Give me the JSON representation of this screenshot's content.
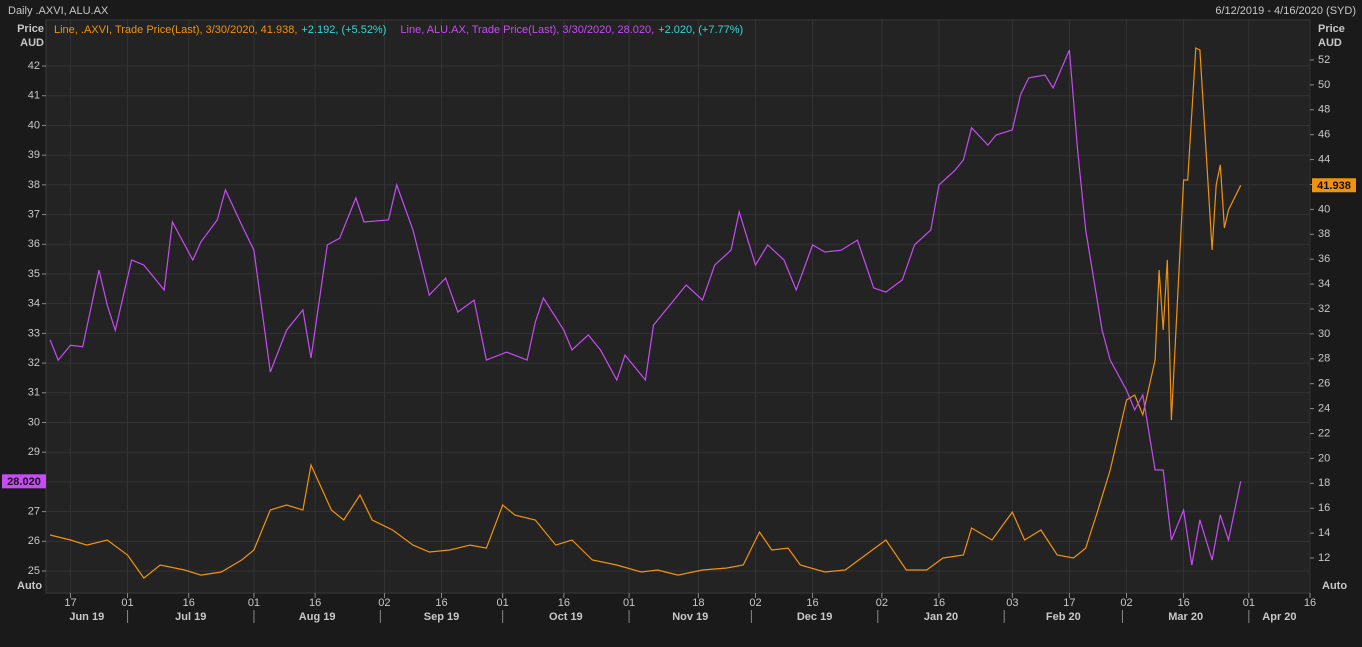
{
  "chart_data": {
    "type": "line",
    "title": "Daily .AXVI, ALU.AX",
    "subtitle": "6/12/2019 - 4/16/2020 (SYD)",
    "ylabel": [
      "Price",
      "AUD"
    ],
    "y2label": [
      "Price",
      "AUD"
    ],
    "auto_labels": [
      "Auto",
      "Auto"
    ],
    "grid": true,
    "xlim": [
      "2019-06-11",
      "2020-04-16"
    ],
    "xticks": [
      {
        "value": "2019-06-17",
        "label": "17"
      },
      {
        "value": "2019-07-01",
        "label": "01"
      },
      {
        "value": "2019-07-16",
        "label": "16"
      },
      {
        "value": "2019-08-01",
        "label": "01"
      },
      {
        "value": "2019-08-16",
        "label": "16"
      },
      {
        "value": "2019-09-02",
        "label": "02"
      },
      {
        "value": "2019-09-16",
        "label": "16"
      },
      {
        "value": "2019-10-01",
        "label": "01"
      },
      {
        "value": "2019-10-16",
        "label": "16"
      },
      {
        "value": "2019-11-01",
        "label": "01"
      },
      {
        "value": "2019-11-18",
        "label": "18"
      },
      {
        "value": "2019-12-02",
        "label": "02"
      },
      {
        "value": "2019-12-16",
        "label": "16"
      },
      {
        "value": "2020-01-02",
        "label": "02"
      },
      {
        "value": "2020-01-16",
        "label": "16"
      },
      {
        "value": "2020-02-03",
        "label": "03"
      },
      {
        "value": "2020-02-17",
        "label": "17"
      },
      {
        "value": "2020-03-02",
        "label": "02"
      },
      {
        "value": "2020-03-16",
        "label": "16"
      },
      {
        "value": "2020-04-01",
        "label": "01"
      },
      {
        "value": "2020-04-16",
        "label": "16"
      }
    ],
    "month_labels": [
      {
        "value": "2019-06",
        "label": "Jun 19"
      },
      {
        "value": "2019-07",
        "label": "Jul 19"
      },
      {
        "value": "2019-08",
        "label": "Aug 19"
      },
      {
        "value": "2019-09",
        "label": "Sep 19"
      },
      {
        "value": "2019-10",
        "label": "Oct 19"
      },
      {
        "value": "2019-11",
        "label": "Nov 19"
      },
      {
        "value": "2019-12",
        "label": "Dec 19"
      },
      {
        "value": "2020-01",
        "label": "Jan 20"
      },
      {
        "value": "2020-02",
        "label": "Feb 20"
      },
      {
        "value": "2020-03",
        "label": "Mar 20"
      },
      {
        "value": "2020-04",
        "label": "Apr 20"
      }
    ],
    "ylim": [
      24.26,
      43.55
    ],
    "yticks": [
      25,
      26,
      27,
      28,
      29,
      30,
      31,
      32,
      33,
      34,
      35,
      36,
      37,
      38,
      39,
      40,
      41,
      42
    ],
    "y2lim": [
      9.19,
      55.21
    ],
    "y2ticks": [
      12,
      14,
      16,
      18,
      20,
      22,
      24,
      26,
      28,
      30,
      32,
      34,
      36,
      38,
      40,
      42,
      44,
      46,
      48,
      50,
      52
    ],
    "series": [
      {
        "name": "Line, .AXVI, Trade Price(Last), 3/30/2020, 41.938,",
        "change": "+2.192, (+5.52%)",
        "color": "#f0920e",
        "axis": "y2",
        "last_label": "41.938",
        "x": [
          "2019-06-12",
          "2019-06-17",
          "2019-06-21",
          "2019-06-26",
          "2019-07-01",
          "2019-07-05",
          "2019-07-09",
          "2019-07-15",
          "2019-07-19",
          "2019-07-24",
          "2019-07-29",
          "2019-08-01",
          "2019-08-05",
          "2019-08-09",
          "2019-08-13",
          "2019-08-15",
          "2019-08-20",
          "2019-08-23",
          "2019-08-27",
          "2019-08-30",
          "2019-09-04",
          "2019-09-09",
          "2019-09-13",
          "2019-09-18",
          "2019-09-23",
          "2019-09-27",
          "2019-10-01",
          "2019-10-04",
          "2019-10-09",
          "2019-10-14",
          "2019-10-18",
          "2019-10-23",
          "2019-10-29",
          "2019-11-04",
          "2019-11-08",
          "2019-11-13",
          "2019-11-19",
          "2019-11-25",
          "2019-11-29",
          "2019-12-03",
          "2019-12-06",
          "2019-12-10",
          "2019-12-13",
          "2019-12-19",
          "2019-12-24",
          "2019-12-30",
          "2020-01-03",
          "2020-01-08",
          "2020-01-13",
          "2020-01-17",
          "2020-01-22",
          "2020-01-24",
          "2020-01-29",
          "2020-02-03",
          "2020-02-06",
          "2020-02-10",
          "2020-02-14",
          "2020-02-18",
          "2020-02-21",
          "2020-02-24",
          "2020-02-27",
          "2020-03-02",
          "2020-03-04",
          "2020-03-06",
          "2020-03-09",
          "2020-03-10",
          "2020-03-11",
          "2020-03-12",
          "2020-03-13",
          "2020-03-16",
          "2020-03-17",
          "2020-03-19",
          "2020-03-20",
          "2020-03-23",
          "2020-03-24",
          "2020-03-25",
          "2020-03-26",
          "2020-03-27",
          "2020-03-30"
        ],
        "values": [
          13.85,
          13.45,
          13.04,
          13.45,
          12.24,
          10.39,
          11.44,
          11.04,
          10.63,
          10.88,
          11.84,
          12.64,
          15.86,
          16.26,
          15.86,
          19.47,
          15.86,
          15.05,
          17.06,
          15.05,
          14.25,
          13.04,
          12.48,
          12.64,
          13.04,
          12.8,
          16.26,
          15.45,
          15.05,
          13.04,
          13.45,
          11.84,
          11.44,
          10.88,
          11.04,
          10.63,
          11.04,
          11.2,
          11.44,
          14.09,
          12.64,
          12.8,
          11.44,
          10.88,
          11.04,
          12.48,
          13.45,
          11.04,
          11.04,
          12.0,
          12.24,
          14.41,
          13.45,
          15.69,
          13.45,
          14.25,
          12.24,
          12.0,
          12.8,
          15.86,
          19.07,
          24.69,
          25.09,
          23.49,
          27.9,
          35.13,
          30.31,
          35.94,
          23.08,
          42.36,
          42.36,
          52.96,
          52.8,
          36.74,
          41.96,
          43.57,
          38.51,
          39.95,
          41.938
        ]
      },
      {
        "name": "Line, ALU.AX, Trade Price(Last), 3/30/2020, 28.020,",
        "change": "+2.020, (+7.77%)",
        "color": "#c84bf5",
        "axis": "y",
        "last_label": "28.020",
        "x": [
          "2019-06-12",
          "2019-06-14",
          "2019-06-17",
          "2019-06-20",
          "2019-06-24",
          "2019-06-26",
          "2019-06-28",
          "2019-07-02",
          "2019-07-05",
          "2019-07-10",
          "2019-07-12",
          "2019-07-17",
          "2019-07-19",
          "2019-07-23",
          "2019-07-25",
          "2019-07-29",
          "2019-08-01",
          "2019-08-05",
          "2019-08-09",
          "2019-08-13",
          "2019-08-15",
          "2019-08-19",
          "2019-08-22",
          "2019-08-26",
          "2019-08-28",
          "2019-09-03",
          "2019-09-05",
          "2019-09-09",
          "2019-09-13",
          "2019-09-17",
          "2019-09-20",
          "2019-09-24",
          "2019-09-27",
          "2019-10-02",
          "2019-10-07",
          "2019-10-09",
          "2019-10-11",
          "2019-10-16",
          "2019-10-18",
          "2019-10-22",
          "2019-10-25",
          "2019-10-29",
          "2019-10-31",
          "2019-11-05",
          "2019-11-07",
          "2019-11-12",
          "2019-11-15",
          "2019-11-19",
          "2019-11-22",
          "2019-11-26",
          "2019-11-28",
          "2019-12-02",
          "2019-12-05",
          "2019-12-09",
          "2019-12-12",
          "2019-12-16",
          "2019-12-19",
          "2019-12-23",
          "2019-12-27",
          "2019-12-31",
          "2020-01-03",
          "2020-01-07",
          "2020-01-10",
          "2020-01-14",
          "2020-01-16",
          "2020-01-20",
          "2020-01-22",
          "2020-01-24",
          "2020-01-28",
          "2020-01-30",
          "2020-02-03",
          "2020-02-05",
          "2020-02-07",
          "2020-02-11",
          "2020-02-13",
          "2020-02-17",
          "2020-02-19",
          "2020-02-21",
          "2020-02-25",
          "2020-02-27",
          "2020-03-02",
          "2020-03-04",
          "2020-03-06",
          "2020-03-09",
          "2020-03-11",
          "2020-03-13",
          "2020-03-16",
          "2020-03-18",
          "2020-03-20",
          "2020-03-23",
          "2020-03-25",
          "2020-03-27",
          "2020-03-30"
        ],
        "values": [
          32.78,
          32.1,
          32.6,
          32.55,
          35.13,
          33.96,
          33.1,
          35.47,
          35.3,
          34.46,
          36.75,
          35.47,
          36.08,
          36.82,
          37.83,
          36.65,
          35.8,
          31.7,
          33.11,
          33.79,
          32.17,
          35.98,
          36.2,
          37.56,
          36.75,
          36.82,
          38.0,
          36.48,
          34.29,
          34.86,
          33.72,
          34.12,
          32.1,
          32.37,
          32.1,
          33.38,
          34.19,
          33.11,
          32.44,
          32.95,
          32.44,
          31.43,
          32.27,
          31.43,
          33.28,
          34.12,
          34.63,
          34.12,
          35.3,
          35.8,
          37.09,
          35.3,
          35.98,
          35.47,
          34.46,
          35.98,
          35.74,
          35.8,
          36.14,
          34.53,
          34.39,
          34.8,
          35.98,
          36.48,
          38.0,
          38.5,
          38.84,
          39.92,
          39.34,
          39.68,
          39.85,
          41.03,
          41.6,
          41.7,
          41.26,
          42.54,
          39.17,
          36.48,
          33.11,
          32.1,
          31.09,
          30.42,
          30.93,
          28.4,
          28.4,
          26.04,
          27.05,
          25.2,
          26.72,
          25.37,
          26.89,
          26.04,
          28.02
        ]
      }
    ]
  }
}
